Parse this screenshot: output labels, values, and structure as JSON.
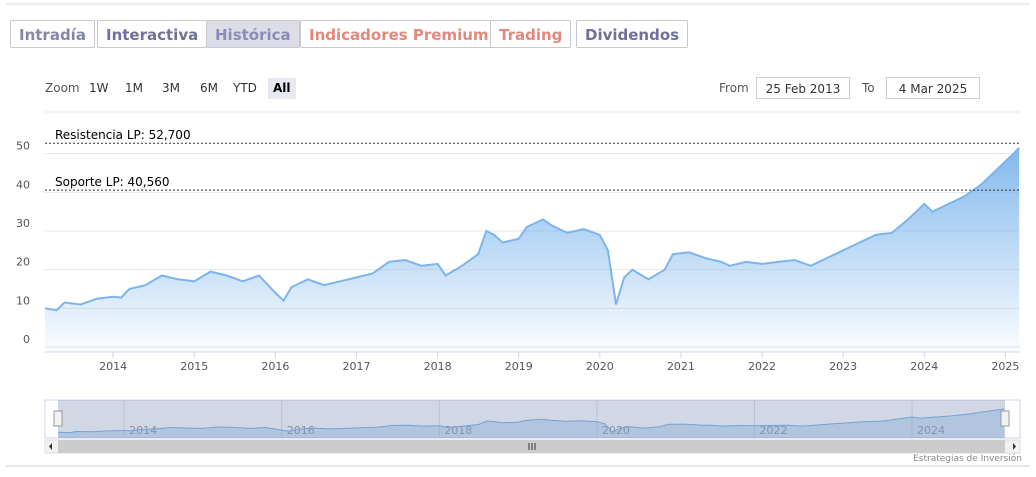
{
  "tabs": [
    {
      "label": "Intradía",
      "color": "#8587a8"
    },
    {
      "label": "Interactiva",
      "color": "#6f7196"
    },
    {
      "label": "Histórica",
      "color": "#8a8db5",
      "active": true
    },
    {
      "label": "Indicadores Premium",
      "color": "#e0897d"
    },
    {
      "label": "Trading",
      "color": "#e0897d"
    },
    {
      "label": "Dividendos",
      "color": "#6f7196"
    }
  ],
  "zoom": {
    "label": "Zoom",
    "buttons": [
      "1W",
      "1M",
      "3M",
      "6M",
      "YTD",
      "All"
    ],
    "selected": 5
  },
  "range": {
    "from_label": "From",
    "from": "25 Feb 2013",
    "to_label": "To",
    "to": "4 Mar 2025"
  },
  "credit": "Estrategias de Inversión",
  "chart_data": {
    "type": "area",
    "color": "#7cb5ec",
    "x": [
      2013.16,
      2013.3,
      2013.4,
      2013.6,
      2013.8,
      2014.0,
      2014.1,
      2014.2,
      2014.4,
      2014.6,
      2014.8,
      2015.0,
      2015.2,
      2015.4,
      2015.6,
      2015.8,
      2016.0,
      2016.1,
      2016.2,
      2016.4,
      2016.6,
      2016.8,
      2017.0,
      2017.2,
      2017.4,
      2017.6,
      2017.8,
      2018.0,
      2018.1,
      2018.3,
      2018.5,
      2018.6,
      2018.7,
      2018.8,
      2019.0,
      2019.1,
      2019.3,
      2019.4,
      2019.6,
      2019.8,
      2020.0,
      2020.1,
      2020.2,
      2020.3,
      2020.4,
      2020.6,
      2020.8,
      2020.9,
      2021.1,
      2021.3,
      2021.5,
      2021.6,
      2021.8,
      2022.0,
      2022.2,
      2022.4,
      2022.6,
      2022.8,
      2023.0,
      2023.2,
      2023.4,
      2023.6,
      2023.8,
      2024.0,
      2024.1,
      2024.3,
      2024.5,
      2024.7,
      2024.8,
      2024.9,
      2025.0,
      2025.1,
      2025.17
    ],
    "values": [
      10,
      9.5,
      11.5,
      11,
      12.5,
      13,
      12.8,
      15,
      16,
      18.5,
      17.5,
      17,
      19.5,
      18.5,
      17,
      18.5,
      14,
      12,
      15.5,
      17.5,
      16,
      17,
      18,
      19,
      22,
      22.5,
      21,
      21.5,
      18.5,
      21,
      24,
      30,
      29,
      27,
      28,
      31,
      33,
      31.5,
      29.5,
      30.5,
      29,
      25,
      11,
      18,
      20,
      17.5,
      20,
      24,
      24.5,
      23,
      22,
      21,
      22,
      21.5,
      22,
      22.5,
      21,
      23,
      25,
      27,
      29,
      29.5,
      33,
      37,
      35,
      37,
      39,
      42,
      44,
      46,
      48,
      50,
      51.5
    ],
    "xlim": [
      2013.16,
      2025.18
    ],
    "xticks": [
      2014,
      2015,
      2016,
      2017,
      2018,
      2019,
      2020,
      2021,
      2022,
      2023,
      2024,
      2025
    ],
    "ylim": [
      0,
      60
    ],
    "yticks": [
      0,
      10,
      20,
      30,
      40,
      50
    ],
    "grid": true,
    "plot_lines": [
      {
        "value": 52.7,
        "label": "Resistencia LP: 52,700"
      },
      {
        "value": 40.56,
        "label": "Soporte LP: 40,560"
      }
    ],
    "navigator_xticks": [
      2014,
      2016,
      2018,
      2020,
      2022,
      2024
    ]
  }
}
